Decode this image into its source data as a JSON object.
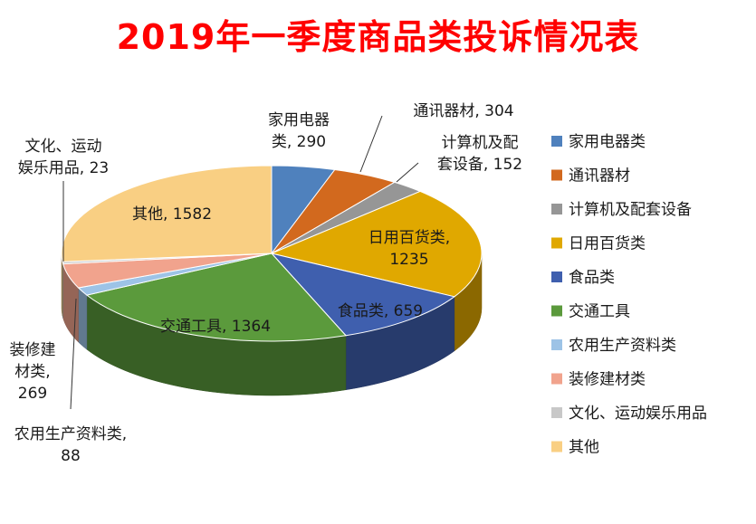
{
  "chart_data": {
    "type": "pie",
    "title": "2019年一季度商品类投诉情况表",
    "legend_position": "right",
    "categories": [
      "家用电器类",
      "通讯器材",
      "计算机及配套设备",
      "日用百货类",
      "食品类",
      "交通工具",
      "农用生产资料类",
      "装修建材类",
      "文化、运动娱乐用品",
      "其他"
    ],
    "values": [
      290,
      304,
      152,
      1235,
      659,
      1364,
      88,
      269,
      23,
      1582
    ],
    "colors": [
      "#4f81bd",
      "#d2691e",
      "#969696",
      "#e0a800",
      "#3f5fae",
      "#5b9a3c",
      "#9dc3e6",
      "#f1a38d",
      "#c8c8c8",
      "#f9cf83"
    ],
    "data_labels": [
      [
        "家用电器",
        "类, 290"
      ],
      [
        "通讯器材, 304"
      ],
      [
        "计算机及配",
        "套设备, 152"
      ],
      [
        "日用百货类,",
        "1235"
      ],
      [
        "食品类, 659"
      ],
      [
        "交通工具, 1364"
      ],
      [
        "农用生产资料类,",
        "88"
      ],
      [
        "装修建",
        "材类,",
        "269"
      ],
      [
        "文化、运动",
        "娱乐用品, 23"
      ],
      [
        "其他, 1582"
      ]
    ]
  }
}
